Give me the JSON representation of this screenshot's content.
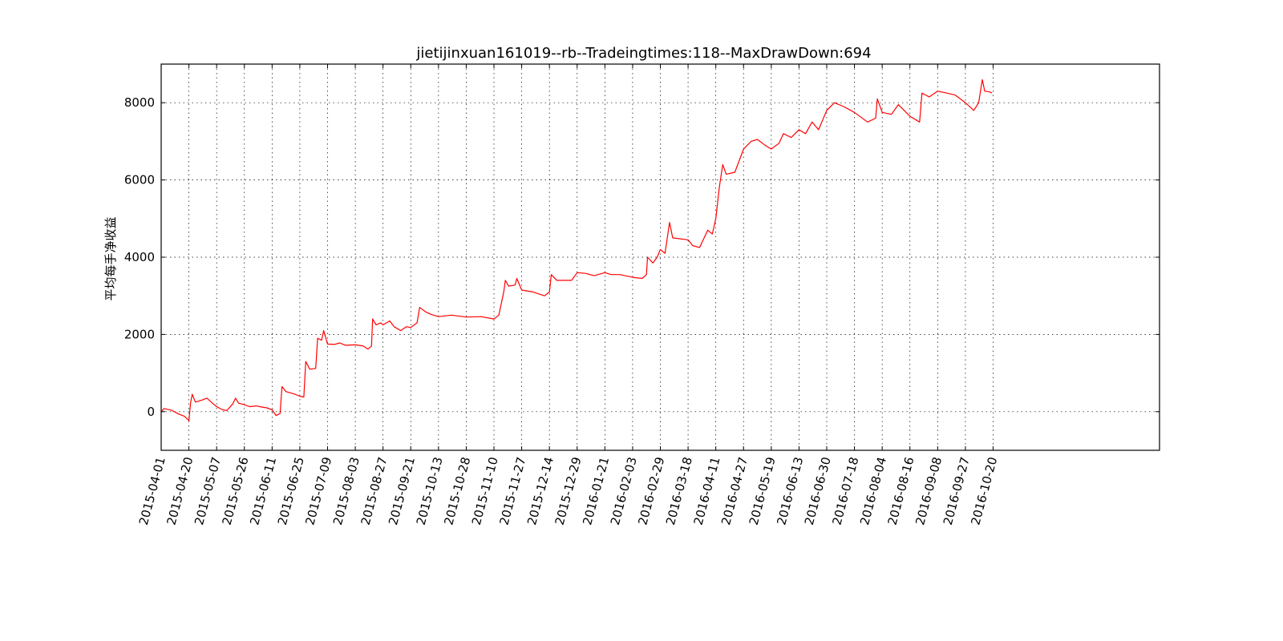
{
  "chart_data": {
    "type": "line",
    "title": "jietijinxuan161019--rb--Tradeingtimes:118--MaxDrawDown:694",
    "xlabel": "",
    "ylabel": "平均每手净收益",
    "ylim": [
      -1000,
      9000
    ],
    "yticks": [
      0,
      2000,
      4000,
      6000,
      8000
    ],
    "ytick_labels": [
      "0",
      "2000",
      "4000",
      "6000",
      "8000"
    ],
    "xticks": [
      "2015-04-01",
      "2015-04-20",
      "2015-05-07",
      "2015-05-26",
      "2015-06-11",
      "2015-06-25",
      "2015-07-09",
      "2015-08-03",
      "2015-08-27",
      "2015-09-21",
      "2015-10-13",
      "2015-10-28",
      "2015-11-10",
      "2015-11-27",
      "2015-12-14",
      "2015-12-29",
      "2016-01-21",
      "2016-02-03",
      "2016-02-29",
      "2016-03-18",
      "2016-04-11",
      "2016-04-27",
      "2016-05-19",
      "2016-06-13",
      "2016-06-30",
      "2016-07-18",
      "2016-08-04",
      "2016-08-16",
      "2016-09-08",
      "2016-09-27",
      "2016-10-20"
    ],
    "x_axis_slots": 36,
    "grid": true,
    "series": [
      {
        "color": "#ff0000",
        "points": [
          {
            "x": "2015-04-01",
            "y": 0
          },
          {
            "x": "2015-04-03",
            "y": 80
          },
          {
            "x": "2015-04-08",
            "y": 40
          },
          {
            "x": "2015-04-13",
            "y": -60
          },
          {
            "x": "2015-04-17",
            "y": -120
          },
          {
            "x": "2015-04-20",
            "y": -230
          },
          {
            "x": "2015-04-21",
            "y": 220
          },
          {
            "x": "2015-04-22",
            "y": 450
          },
          {
            "x": "2015-04-24",
            "y": 250
          },
          {
            "x": "2015-04-28",
            "y": 300
          },
          {
            "x": "2015-05-01",
            "y": 350
          },
          {
            "x": "2015-05-05",
            "y": 200
          },
          {
            "x": "2015-05-07",
            "y": 130
          },
          {
            "x": "2015-05-11",
            "y": 50
          },
          {
            "x": "2015-05-14",
            "y": 30
          },
          {
            "x": "2015-05-18",
            "y": 200
          },
          {
            "x": "2015-05-20",
            "y": 350
          },
          {
            "x": "2015-05-22",
            "y": 220
          },
          {
            "x": "2015-05-26",
            "y": 180
          },
          {
            "x": "2015-05-29",
            "y": 130
          },
          {
            "x": "2015-06-02",
            "y": 150
          },
          {
            "x": "2015-06-05",
            "y": 120
          },
          {
            "x": "2015-06-08",
            "y": 100
          },
          {
            "x": "2015-06-11",
            "y": 50
          },
          {
            "x": "2015-06-13",
            "y": -100
          },
          {
            "x": "2015-06-15",
            "y": -50
          },
          {
            "x": "2015-06-16",
            "y": 650
          },
          {
            "x": "2015-06-18",
            "y": 520
          },
          {
            "x": "2015-06-22",
            "y": 460
          },
          {
            "x": "2015-06-25",
            "y": 400
          },
          {
            "x": "2015-06-27",
            "y": 380
          },
          {
            "x": "2015-06-28",
            "y": 1300
          },
          {
            "x": "2015-06-30",
            "y": 1100
          },
          {
            "x": "2015-07-03",
            "y": 1120
          },
          {
            "x": "2015-07-04",
            "y": 1900
          },
          {
            "x": "2015-07-06",
            "y": 1850
          },
          {
            "x": "2015-07-07",
            "y": 2100
          },
          {
            "x": "2015-07-09",
            "y": 1750
          },
          {
            "x": "2015-07-15",
            "y": 1740
          },
          {
            "x": "2015-07-20",
            "y": 1780
          },
          {
            "x": "2015-07-25",
            "y": 1720
          },
          {
            "x": "2015-08-03",
            "y": 1730
          },
          {
            "x": "2015-08-10",
            "y": 1700
          },
          {
            "x": "2015-08-14",
            "y": 1620
          },
          {
            "x": "2015-08-17",
            "y": 1700
          },
          {
            "x": "2015-08-18",
            "y": 2400
          },
          {
            "x": "2015-08-21",
            "y": 2250
          },
          {
            "x": "2015-08-25",
            "y": 2300
          },
          {
            "x": "2015-08-27",
            "y": 2250
          },
          {
            "x": "2015-09-02",
            "y": 2350
          },
          {
            "x": "2015-09-06",
            "y": 2200
          },
          {
            "x": "2015-09-12",
            "y": 2100
          },
          {
            "x": "2015-09-17",
            "y": 2200
          },
          {
            "x": "2015-09-21",
            "y": 2180
          },
          {
            "x": "2015-09-26",
            "y": 2300
          },
          {
            "x": "2015-09-28",
            "y": 2700
          },
          {
            "x": "2015-10-03",
            "y": 2580
          },
          {
            "x": "2015-10-07",
            "y": 2520
          },
          {
            "x": "2015-10-13",
            "y": 2460
          },
          {
            "x": "2015-10-20",
            "y": 2500
          },
          {
            "x": "2015-10-28",
            "y": 2450
          },
          {
            "x": "2015-11-04",
            "y": 2460
          },
          {
            "x": "2015-11-10",
            "y": 2400
          },
          {
            "x": "2015-11-13",
            "y": 2500
          },
          {
            "x": "2015-11-16",
            "y": 3100
          },
          {
            "x": "2015-11-17",
            "y": 3400
          },
          {
            "x": "2015-11-19",
            "y": 3250
          },
          {
            "x": "2015-11-23",
            "y": 3280
          },
          {
            "x": "2015-11-24",
            "y": 3450
          },
          {
            "x": "2015-11-27",
            "y": 3150
          },
          {
            "x": "2015-12-04",
            "y": 3100
          },
          {
            "x": "2015-12-11",
            "y": 3000
          },
          {
            "x": "2015-12-14",
            "y": 3100
          },
          {
            "x": "2015-12-15",
            "y": 3550
          },
          {
            "x": "2015-12-18",
            "y": 3400
          },
          {
            "x": "2015-12-26",
            "y": 3400
          },
          {
            "x": "2015-12-29",
            "y": 3600
          },
          {
            "x": "2016-01-05",
            "y": 3580
          },
          {
            "x": "2016-01-12",
            "y": 3520
          },
          {
            "x": "2016-01-21",
            "y": 3600
          },
          {
            "x": "2016-01-24",
            "y": 3550
          },
          {
            "x": "2016-01-28",
            "y": 3550
          },
          {
            "x": "2016-02-03",
            "y": 3480
          },
          {
            "x": "2016-02-12",
            "y": 3450
          },
          {
            "x": "2016-02-16",
            "y": 3550
          },
          {
            "x": "2016-02-17",
            "y": 4000
          },
          {
            "x": "2016-02-22",
            "y": 3850
          },
          {
            "x": "2016-02-26",
            "y": 4000
          },
          {
            "x": "2016-02-29",
            "y": 4200
          },
          {
            "x": "2016-03-03",
            "y": 4100
          },
          {
            "x": "2016-03-06",
            "y": 4900
          },
          {
            "x": "2016-03-08",
            "y": 4500
          },
          {
            "x": "2016-03-18",
            "y": 4450
          },
          {
            "x": "2016-03-22",
            "y": 4300
          },
          {
            "x": "2016-03-28",
            "y": 4250
          },
          {
            "x": "2016-04-04",
            "y": 4700
          },
          {
            "x": "2016-04-08",
            "y": 4600
          },
          {
            "x": "2016-04-11",
            "y": 5000
          },
          {
            "x": "2016-04-13",
            "y": 5800
          },
          {
            "x": "2016-04-15",
            "y": 6400
          },
          {
            "x": "2016-04-17",
            "y": 6150
          },
          {
            "x": "2016-04-22",
            "y": 6200
          },
          {
            "x": "2016-04-27",
            "y": 6800
          },
          {
            "x": "2016-05-03",
            "y": 7000
          },
          {
            "x": "2016-05-08",
            "y": 7050
          },
          {
            "x": "2016-05-14",
            "y": 6900
          },
          {
            "x": "2016-05-19",
            "y": 6800
          },
          {
            "x": "2016-05-26",
            "y": 6950
          },
          {
            "x": "2016-05-30",
            "y": 7200
          },
          {
            "x": "2016-06-06",
            "y": 7100
          },
          {
            "x": "2016-06-13",
            "y": 7300
          },
          {
            "x": "2016-06-17",
            "y": 7200
          },
          {
            "x": "2016-06-21",
            "y": 7500
          },
          {
            "x": "2016-06-25",
            "y": 7300
          },
          {
            "x": "2016-06-30",
            "y": 7800
          },
          {
            "x": "2016-07-05",
            "y": 8000
          },
          {
            "x": "2016-07-11",
            "y": 7900
          },
          {
            "x": "2016-07-18",
            "y": 7750
          },
          {
            "x": "2016-07-26",
            "y": 7500
          },
          {
            "x": "2016-07-31",
            "y": 7600
          },
          {
            "x": "2016-08-01",
            "y": 8100
          },
          {
            "x": "2016-08-04",
            "y": 7750
          },
          {
            "x": "2016-08-08",
            "y": 7700
          },
          {
            "x": "2016-08-11",
            "y": 7950
          },
          {
            "x": "2016-08-16",
            "y": 7650
          },
          {
            "x": "2016-08-24",
            "y": 7500
          },
          {
            "x": "2016-08-26",
            "y": 8250
          },
          {
            "x": "2016-09-01",
            "y": 8150
          },
          {
            "x": "2016-09-08",
            "y": 8300
          },
          {
            "x": "2016-09-14",
            "y": 8250
          },
          {
            "x": "2016-09-20",
            "y": 8200
          },
          {
            "x": "2016-09-27",
            "y": 8000
          },
          {
            "x": "2016-10-04",
            "y": 7800
          },
          {
            "x": "2016-10-08",
            "y": 8000
          },
          {
            "x": "2016-10-11",
            "y": 8600
          },
          {
            "x": "2016-10-13",
            "y": 8300
          },
          {
            "x": "2016-10-17",
            "y": 8280
          },
          {
            "x": "2016-10-19",
            "y": 8250
          }
        ]
      }
    ]
  }
}
